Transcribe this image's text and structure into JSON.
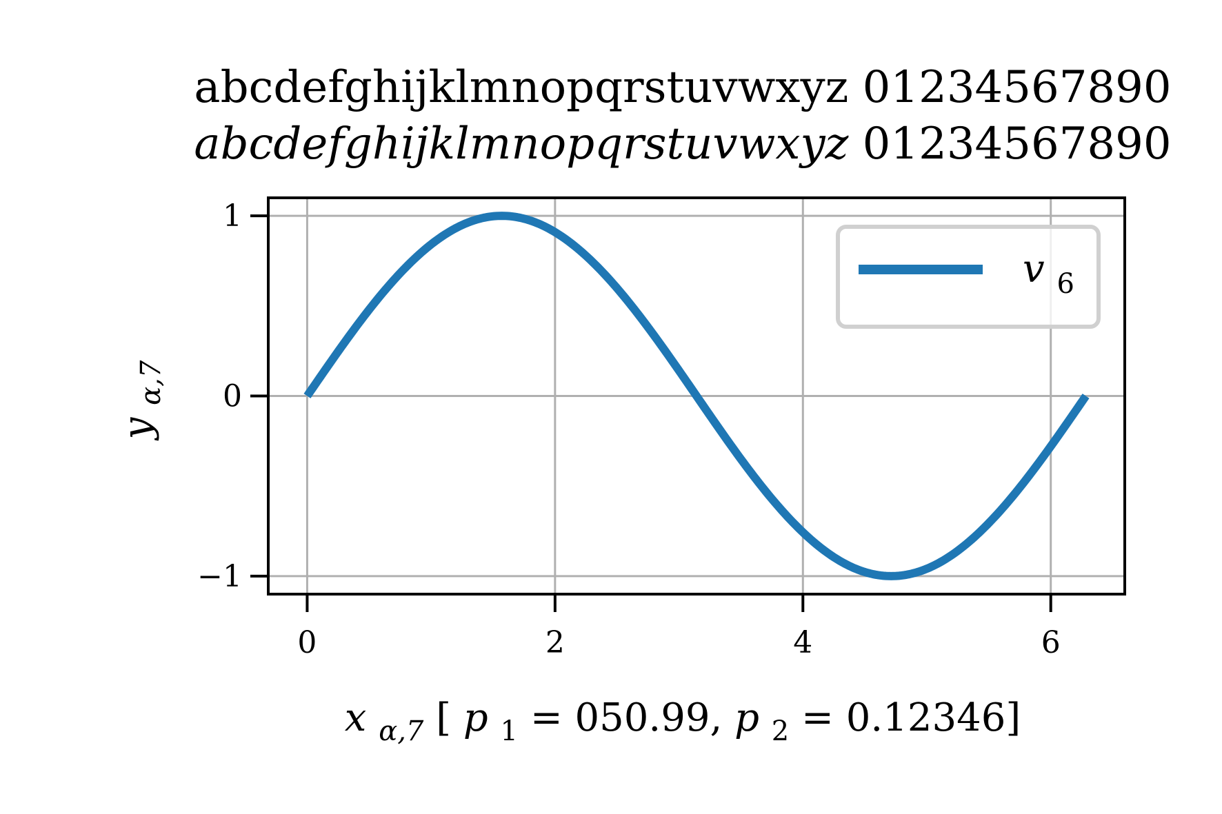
{
  "chart_data": {
    "type": "line",
    "title": {
      "line1": "abcdefghijklmnopqrstuvwxyz 01234567890",
      "line2_italic": "abcdefghijklmnopqrstuvwxyz",
      "line2_digits": "01234567890"
    },
    "xlabel": {
      "var": "x",
      "sub": "α,7",
      "text1": " [",
      "p1": "p",
      "p1_sub": "1",
      "text2": " = 050.99, ",
      "p2": "p",
      "p2_sub": "2",
      "text3": " = 0.12346]"
    },
    "ylabel": {
      "var": "y",
      "sub": "α,7"
    },
    "xlim": [
      -0.314,
      6.597
    ],
    "ylim": [
      -1.1,
      1.1
    ],
    "xticks": [
      0,
      2,
      4,
      6
    ],
    "xtick_labels": [
      "0",
      "2",
      "4",
      "6"
    ],
    "yticks": [
      -1,
      0,
      1
    ],
    "ytick_labels": [
      "−1",
      "0",
      "1"
    ],
    "grid": true,
    "legend": {
      "position": "top-right",
      "var": "v",
      "sub": "6"
    },
    "series": [
      {
        "function": "sin(x)",
        "x_range": [
          0,
          6.2832
        ],
        "x": [
          0,
          0.5236,
          1.0472,
          1.5708,
          2.0944,
          2.618,
          3.1416,
          3.6652,
          4.1888,
          4.7124,
          5.236,
          5.7596,
          6.2832
        ],
        "y": [
          0,
          0.5,
          0.866,
          1,
          0.866,
          0.5,
          0,
          -0.5,
          -0.866,
          -1,
          -0.866,
          -0.5,
          0
        ],
        "color": "#1f77b4"
      }
    ],
    "colors": {
      "line": "#1f77b4",
      "grid": "#b0b0b0",
      "axes": "#000000",
      "legend_border": "#d0d0d0"
    }
  }
}
